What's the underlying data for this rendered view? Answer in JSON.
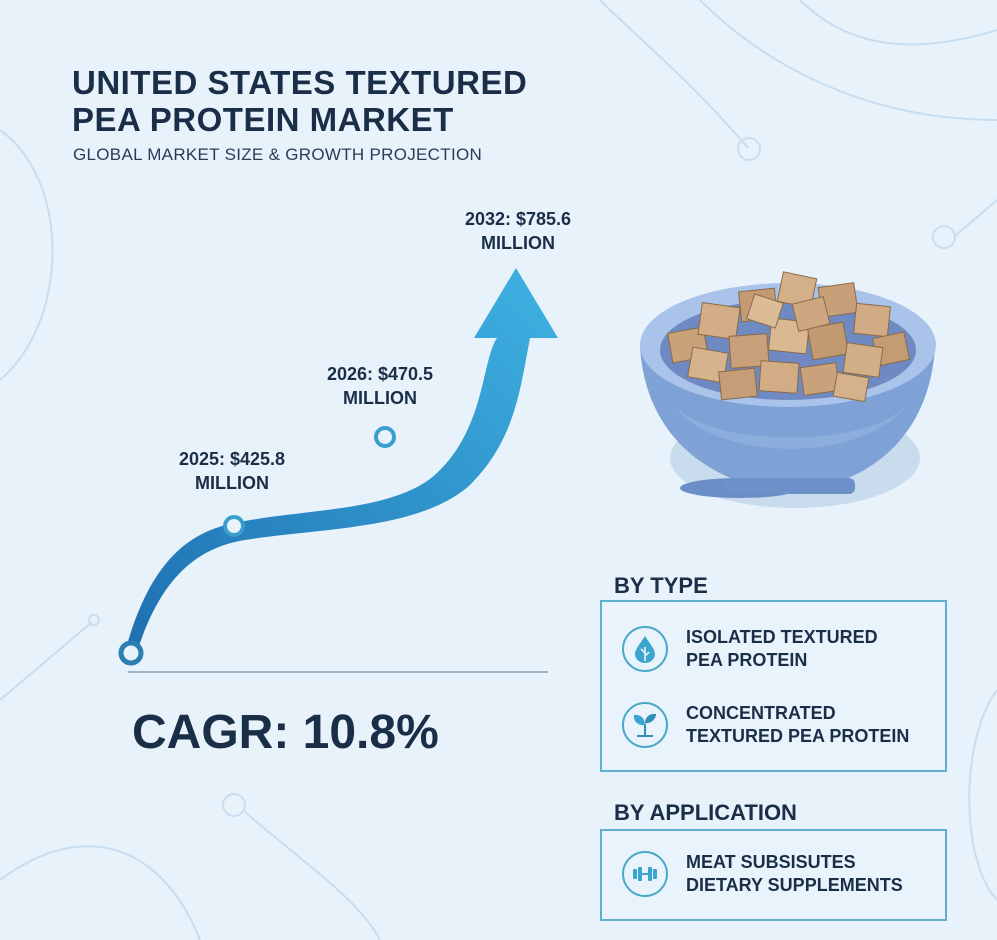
{
  "title_line1": "UNITED STATES TEXTURED",
  "title_line2": "PEA PROTEIN MARKET",
  "subtitle": "GLOBAL MARKET SIZE & GROWTH PROJECTION",
  "cagr": "CAGR: 10.8%",
  "chart_data": {
    "type": "line",
    "x": [
      2025,
      2026,
      2032
    ],
    "values": [
      425.8,
      470.5,
      785.6
    ],
    "unit": "MILLION",
    "annotations": [
      {
        "year": 2025,
        "line1": "2025: $425.8",
        "line2": "MILLION"
      },
      {
        "year": 2026,
        "line1": "2026: $470.5",
        "line2": "MILLION"
      },
      {
        "year": 2032,
        "line1": "2032: $785.6",
        "line2": "MILLION"
      }
    ],
    "colors": {
      "curve_start": "#1e6fb0",
      "curve_end": "#3fb2e2",
      "marker": "#3a9fcf"
    }
  },
  "by_type": {
    "title": "BY TYPE",
    "items": [
      {
        "line1": "ISOLATED TEXTURED",
        "line2": "PEA PROTEIN",
        "icon": "water-drop-leaf-icon"
      },
      {
        "line1": "CONCENTRATED",
        "line2": "TEXTURED PEA PROTEIN",
        "icon": "sprout-icon"
      }
    ]
  },
  "by_application": {
    "title": "BY APPLICATION",
    "items": [
      {
        "line1": "MEAT SUBSISUTES",
        "line2": "DIETARY SUPPLEMENTS",
        "icon": "dumbbell-icon"
      }
    ]
  }
}
